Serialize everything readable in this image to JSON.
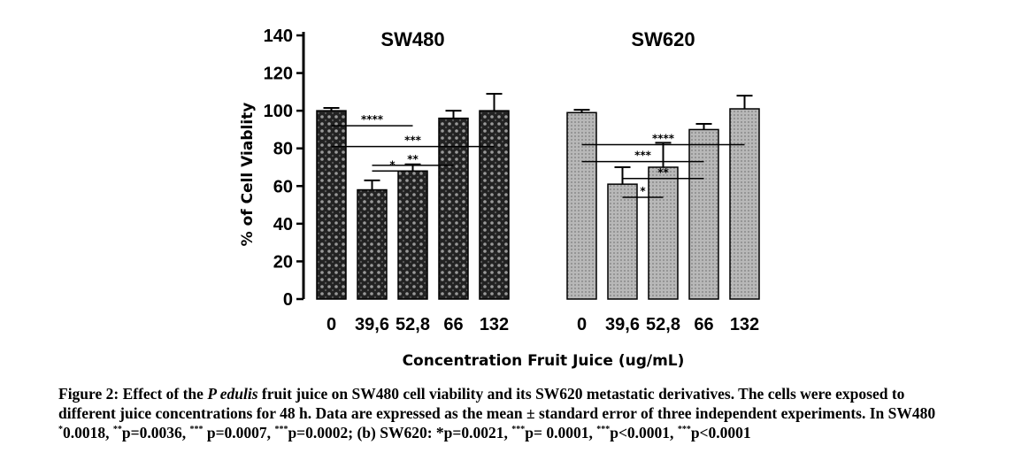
{
  "chart_data": {
    "type": "bar",
    "ylabel": "% of Cell Viablity",
    "xlabel": "Concentration Fruit Juice (ug/mL)",
    "ylim": [
      0,
      140
    ],
    "yticks": [
      0,
      20,
      40,
      60,
      80,
      100,
      120,
      140
    ],
    "categories": [
      "0",
      "39,6",
      "52,8",
      "66",
      "132"
    ],
    "groups": [
      {
        "name": "SW480",
        "pattern": "dark-crosshatch",
        "values": [
          100,
          58,
          68,
          96,
          100
        ],
        "errors": [
          1.5,
          5,
          3.5,
          4,
          9
        ],
        "significance": [
          {
            "from": 0,
            "to": 2,
            "level": 92,
            "label": "****"
          },
          {
            "from": 0,
            "to": 4,
            "level": 81,
            "label": "***"
          },
          {
            "from": 1,
            "to": 3,
            "level": 71,
            "label": "**"
          },
          {
            "from": 1,
            "to": 2,
            "level": 35,
            "label": "*"
          }
        ]
      },
      {
        "name": "SW620",
        "pattern": "grey-dotted",
        "values": [
          99,
          61,
          70,
          90,
          101
        ],
        "errors": [
          1.5,
          9,
          13,
          3,
          7
        ],
        "significance": [
          {
            "from": 0,
            "to": 4,
            "level": 82,
            "label": "****"
          },
          {
            "from": 0,
            "to": 3,
            "level": 73,
            "label": "***"
          },
          {
            "from": 1,
            "to": 3,
            "level": 64,
            "label": "**"
          },
          {
            "from": 1,
            "to": 2,
            "level": 54,
            "label": "*"
          }
        ]
      }
    ]
  },
  "caption": {
    "lead": "Figure 2: Effect of the ",
    "species": "P edulis",
    "body": " fruit juice on SW480 cell viability and its SW620 metastatic derivatives. The cells were exposed to different juice concentrations for 48 h. Data are expressed as the mean ± standard error of three independent experiments. In SW480 ",
    "s1_sup": "*",
    "s1": "0.0018, ",
    "s2_sup": "**",
    "s2": "p=0.0036, ",
    "s3_sup": "***",
    "s3": " p=0.0007, ",
    "s4_sup": "***",
    "s4": "p=0.0002; (b) SW620: *p=0.0021, ",
    "s5_sup": "***",
    "s5": "p= 0.0001, ",
    "s6_sup": "***",
    "s6": "p<0.0001, ",
    "s7_sup": "***",
    "s7": "p<0.0001"
  }
}
